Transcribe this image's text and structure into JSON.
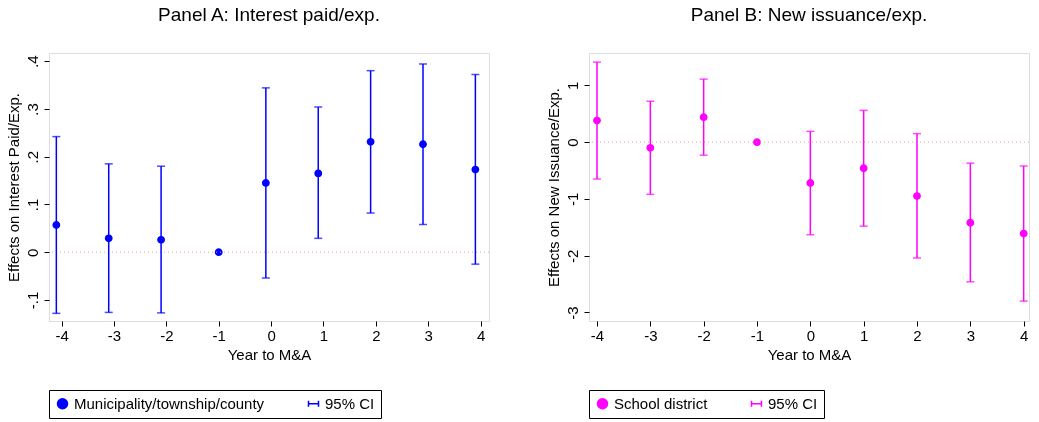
{
  "chart_data": [
    {
      "type": "scatter",
      "title": "Panel A: Interest paid/exp.",
      "xlabel": "Year to M&A",
      "ylabel": "Effects on Interest Paid/Exp.",
      "xlim": [
        -4.24,
        4.16
      ],
      "ylim": [
        -0.144,
        0.417
      ],
      "xticks": [
        -4,
        -3,
        -2,
        -1,
        0,
        1,
        2,
        3,
        4
      ],
      "yticks": [
        {
          "value": -0.1,
          "label": "-.1"
        },
        0,
        {
          "value": 0.1,
          "label": ".1"
        },
        {
          "value": 0.2,
          "label": ".2"
        },
        {
          "value": 0.3,
          "label": ".3"
        },
        {
          "value": 0.4,
          "label": ".4"
        }
      ],
      "marker": "circle",
      "grid": false,
      "legend": "bottom",
      "annotations": [
        "95% CI"
      ],
      "ref_lines": [
        {
          "axis": "y",
          "value": 0,
          "color": "#e8a0a0",
          "line_style": "dotted"
        }
      ],
      "series": [
        {
          "name": "Municipality/township/county",
          "color": "#0000ff",
          "x": [
            -4.1,
            -3.1,
            -2.1,
            -1,
            -0.1,
            0.9,
            1.9,
            2.9,
            3.9
          ],
          "values": [
            0.057,
            0.029,
            0.026,
            0,
            0.145,
            0.165,
            0.231,
            0.226,
            0.173
          ],
          "errors": [
            [
              -0.128,
              0.242
            ],
            [
              -0.126,
              0.185
            ],
            [
              -0.127,
              0.18
            ],
            null,
            [
              -0.054,
              0.344
            ],
            [
              0.029,
              0.304
            ],
            [
              0.082,
              0.38
            ],
            [
              0.058,
              0.394
            ],
            [
              -0.025,
              0.372
            ]
          ]
        }
      ]
    },
    {
      "type": "scatter",
      "title": "Panel B: New issuance/exp.",
      "xlabel": "Year to M&A",
      "ylabel": "Effects on New Issuance/Exp.",
      "xlim": [
        -4.15,
        4.1
      ],
      "ylim": [
        -3.15,
        1.57
      ],
      "xticks": [
        -4,
        -3,
        -2,
        -1,
        0,
        1,
        2,
        3,
        4
      ],
      "yticks": [
        -3,
        -2,
        -1,
        0,
        1
      ],
      "marker": "circle",
      "grid": false,
      "legend": "bottom",
      "annotations": [
        "95% CI"
      ],
      "ref_lines": [
        {
          "axis": "y",
          "value": 0,
          "color": "#e8a0a0",
          "line_style": "dotted"
        }
      ],
      "series": [
        {
          "name": "School district",
          "color": "#ff00ff",
          "x": [
            -4,
            -3,
            -2,
            -1,
            0,
            1,
            2,
            3,
            4
          ],
          "values": [
            0.38,
            -0.1,
            0.44,
            0,
            -0.72,
            -0.46,
            -0.95,
            -1.42,
            -1.61
          ],
          "errors": [
            [
              -0.65,
              1.41
            ],
            [
              -0.92,
              0.72
            ],
            [
              -0.23,
              1.11
            ],
            null,
            [
              -1.63,
              0.19
            ],
            [
              -1.48,
              0.56
            ],
            [
              -2.04,
              0.15
            ],
            [
              -2.46,
              -0.37
            ],
            [
              -2.8,
              -0.42
            ]
          ]
        }
      ]
    }
  ]
}
